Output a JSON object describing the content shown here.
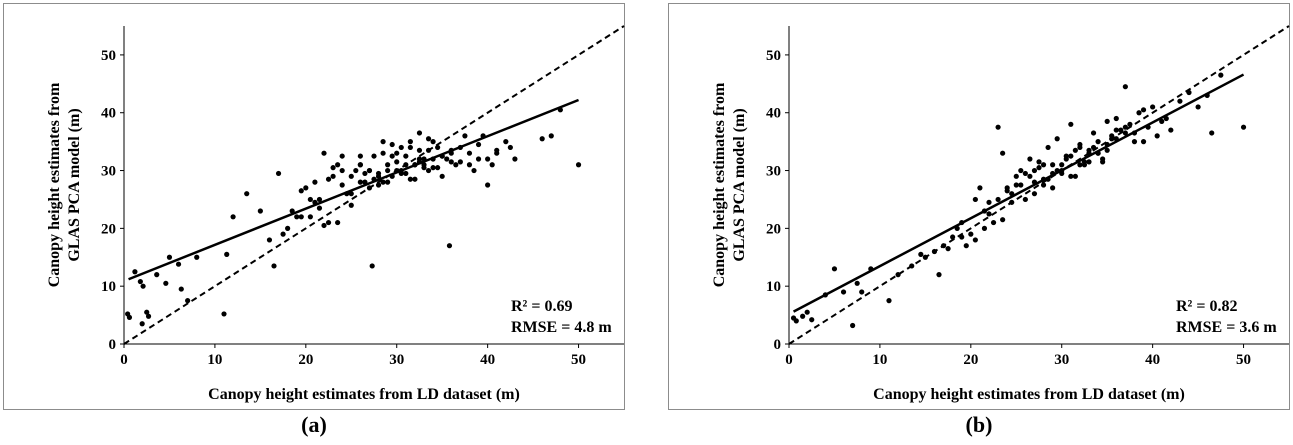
{
  "chart_data": [
    {
      "type": "scatter",
      "panel_label": "a",
      "xlabel": "Canopy height estimates from LD dataset (m)",
      "ylabel_lines": [
        "Canopy height estimates from",
        "GLAS PCA model (m)"
      ],
      "xlim": [
        0,
        55
      ],
      "ylim": [
        0,
        55
      ],
      "xticks": [
        0,
        10,
        20,
        30,
        40,
        50
      ],
      "yticks": [
        0,
        10,
        20,
        30,
        40,
        50
      ],
      "grid": false,
      "fit_line": {
        "x": [
          0.5,
          50
        ],
        "y": [
          11.2,
          42.2
        ],
        "style": "solid"
      },
      "one_to_one_line": {
        "x": [
          0,
          55
        ],
        "y": [
          0,
          55
        ],
        "style": "dashed"
      },
      "stats": [
        "R² = 0.69",
        "RMSE = 4.8 m"
      ],
      "points": {
        "x": [
          0.4,
          0.6,
          1.2,
          1.8,
          2.0,
          2.1,
          2.5,
          2.7,
          3.6,
          4.6,
          5.0,
          6.0,
          6.3,
          7.0,
          8.0,
          11.0,
          11.3,
          12.0,
          13.5,
          15.0,
          16.0,
          16.5,
          17.0,
          17.5,
          18.0,
          18.5,
          19.0,
          19.5,
          20.0,
          20.5,
          21.0,
          21.5,
          22.0,
          22.5,
          23.0,
          23.5,
          24.0,
          24.5,
          25.0,
          25.5,
          26.0,
          26.5,
          27.0,
          27.3,
          27.5,
          28.0,
          28.5,
          29.0,
          29.5,
          30.0,
          30.5,
          31.0,
          31.5,
          32.0,
          32.5,
          33.0,
          33.5,
          34.0,
          34.5,
          35.0,
          35.5,
          35.8,
          36.0,
          36.5,
          37.0,
          37.5,
          38.0,
          38.5,
          39.0,
          39.5,
          40.0,
          40.5,
          41.0,
          42.0,
          42.5,
          43.0,
          46.0,
          47.0,
          48.0,
          50.0,
          21.0,
          22.0,
          23.5,
          24.0,
          25.0,
          26.0,
          26.5,
          27.5,
          28.5,
          29.0,
          30.0,
          31.0,
          32.0,
          32.5,
          33.0,
          34.0,
          35.0,
          36.0,
          37.0,
          38.0,
          39.0,
          40.0,
          41.0,
          29.5,
          30.5,
          31.5,
          32.5,
          33.5,
          34.5,
          28.0,
          27.0,
          26.0,
          25.0,
          24.0,
          23.0,
          22.5,
          21.5,
          20.5,
          19.5,
          30.0,
          31.0,
          32.0,
          33.0,
          34.0,
          35.0,
          36.0,
          29.0,
          28.0,
          27.0,
          26.0,
          31.5,
          32.5,
          33.5,
          30.5,
          29.5,
          28.5
        ],
        "y": [
          5.2,
          4.6,
          12.5,
          10.8,
          3.5,
          10.0,
          5.5,
          4.8,
          12.0,
          10.5,
          15.0,
          13.8,
          9.5,
          7.5,
          15.0,
          5.2,
          15.5,
          22.0,
          26.0,
          23.0,
          18.0,
          13.5,
          29.5,
          19.0,
          20.0,
          23.0,
          22.0,
          26.5,
          27.0,
          25.0,
          28.0,
          25.0,
          33.0,
          21.0,
          30.5,
          31.0,
          32.5,
          26.0,
          29.0,
          30.0,
          31.0,
          28.0,
          30.0,
          13.5,
          32.5,
          29.5,
          35.0,
          31.0,
          29.0,
          33.0,
          30.0,
          32.5,
          34.0,
          31.0,
          33.5,
          32.0,
          30.0,
          35.0,
          34.0,
          29.0,
          32.0,
          17.0,
          33.0,
          31.0,
          31.5,
          36.0,
          33.0,
          30.0,
          32.0,
          36.0,
          27.5,
          31.0,
          33.5,
          35.0,
          34.0,
          32.0,
          35.5,
          36.0,
          40.5,
          31.0,
          24.5,
          20.5,
          21.0,
          30.0,
          24.0,
          32.5,
          29.5,
          28.5,
          28.0,
          30.0,
          31.5,
          29.5,
          28.5,
          32.0,
          30.5,
          30.5,
          32.5,
          31.5,
          34.0,
          31.0,
          34.5,
          32.0,
          33.0,
          32.5,
          29.5,
          28.5,
          31.5,
          33.5,
          30.5,
          27.5,
          27.0,
          28.0,
          26.0,
          27.5,
          29.0,
          28.5,
          23.5,
          22.0,
          22.0,
          30.0,
          31.0,
          31.0,
          31.0,
          32.0,
          32.5,
          33.5,
          28.0,
          29.0,
          30.0,
          31.0,
          35.0,
          36.5,
          35.5,
          34.0,
          34.5,
          33.0
        ]
      }
    },
    {
      "type": "scatter",
      "panel_label": "b",
      "xlabel": "Canopy height estimates from LD dataset (m)",
      "ylabel_lines": [
        "Canopy height estimates from",
        "GLAS PCA model (m)"
      ],
      "xlim": [
        0,
        55
      ],
      "ylim": [
        0,
        55
      ],
      "xticks": [
        0,
        10,
        20,
        30,
        40,
        50
      ],
      "yticks": [
        0,
        10,
        20,
        30,
        40,
        50
      ],
      "grid": false,
      "fit_line": {
        "x": [
          0.5,
          50
        ],
        "y": [
          5.6,
          46.6
        ],
        "style": "solid"
      },
      "one_to_one_line": {
        "x": [
          0,
          55
        ],
        "y": [
          0,
          55
        ],
        "style": "dashed"
      },
      "stats": [
        "R² = 0.82",
        "RMSE = 3.6 m"
      ],
      "points": {
        "x": [
          0.5,
          0.8,
          1.5,
          2.0,
          2.5,
          4.0,
          5.0,
          6.0,
          7.0,
          7.5,
          8.0,
          9.0,
          11.0,
          12.0,
          13.5,
          14.5,
          15.0,
          16.0,
          16.5,
          17.0,
          17.5,
          18.0,
          18.5,
          19.0,
          19.5,
          20.0,
          20.5,
          21.0,
          21.5,
          22.0,
          22.5,
          23.0,
          23.5,
          24.0,
          24.5,
          25.0,
          25.5,
          26.0,
          26.5,
          27.0,
          27.5,
          28.0,
          28.5,
          29.0,
          29.5,
          30.0,
          30.5,
          31.0,
          31.5,
          32.0,
          32.5,
          33.0,
          33.5,
          34.0,
          34.5,
          35.0,
          35.5,
          36.0,
          36.5,
          37.0,
          37.5,
          38.0,
          38.5,
          39.0,
          39.5,
          40.0,
          40.5,
          41.0,
          41.5,
          42.0,
          43.0,
          44.0,
          45.0,
          46.0,
          46.5,
          47.5,
          50.0,
          22.0,
          23.0,
          24.0,
          25.0,
          26.0,
          27.0,
          28.0,
          29.0,
          30.0,
          31.0,
          32.0,
          33.0,
          34.0,
          35.0,
          36.0,
          37.0,
          38.0,
          26.5,
          27.5,
          28.5,
          29.5,
          30.5,
          31.5,
          32.5,
          33.5,
          34.5,
          35.5,
          24.5,
          25.5,
          28.0,
          30.0,
          32.0,
          34.0,
          36.0,
          23.5,
          21.5,
          20.5,
          19.0,
          27.0,
          29.0,
          31.0,
          33.0,
          35.0,
          37.0,
          39.0
        ],
        "y": [
          4.5,
          4.0,
          4.8,
          5.5,
          4.2,
          8.5,
          13.0,
          9.0,
          3.2,
          10.5,
          9.0,
          13.0,
          7.5,
          12.0,
          13.5,
          15.5,
          15.0,
          16.0,
          12.0,
          17.0,
          16.5,
          18.5,
          20.0,
          21.0,
          17.0,
          19.0,
          25.0,
          27.0,
          23.0,
          24.5,
          21.0,
          37.5,
          33.0,
          27.0,
          24.5,
          29.0,
          30.0,
          25.0,
          32.0,
          28.0,
          30.5,
          27.5,
          34.0,
          31.0,
          35.5,
          30.0,
          32.5,
          38.0,
          29.0,
          34.5,
          31.0,
          33.0,
          36.5,
          35.0,
          32.0,
          38.5,
          36.0,
          39.0,
          37.0,
          44.5,
          38.0,
          36.5,
          40.0,
          35.0,
          37.5,
          41.0,
          36.0,
          38.5,
          39.0,
          37.0,
          42.0,
          43.5,
          41.0,
          43.0,
          36.5,
          46.5,
          37.5,
          22.5,
          25.0,
          26.5,
          27.5,
          29.5,
          30.0,
          28.5,
          29.5,
          31.0,
          32.5,
          34.0,
          33.5,
          33.0,
          34.5,
          35.5,
          36.5,
          35.0,
          29.0,
          31.5,
          28.5,
          30.0,
          32.0,
          33.5,
          31.5,
          34.0,
          31.5,
          35.5,
          26.0,
          27.5,
          31.0,
          29.5,
          31.0,
          33.0,
          37.0,
          21.5,
          20.0,
          18.0,
          18.5,
          26.0,
          27.0,
          29.0,
          31.5,
          33.5,
          37.5,
          40.5
        ]
      }
    }
  ]
}
